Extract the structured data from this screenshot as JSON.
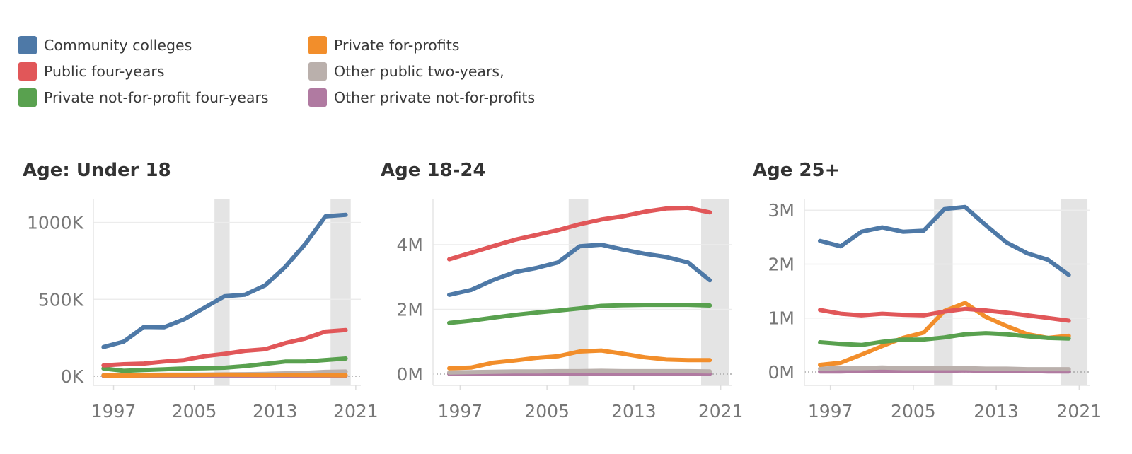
{
  "legend": [
    {
      "label": "Community colleges",
      "color": "#4e79a7"
    },
    {
      "label": "Public four-years",
      "color": "#e15759"
    },
    {
      "label": "Private not-for-profit four-years",
      "color": "#59a14f"
    },
    {
      "label": "Private for-profits",
      "color": "#f28e2b"
    },
    {
      "label": "Other public two-years,",
      "color": "#bab0ac"
    },
    {
      "label": "Other private not-for-profits",
      "color": "#b07aa1"
    }
  ],
  "chart_data": [
    {
      "type": "line",
      "title": "Age: Under 18",
      "x": [
        1996,
        1998,
        2000,
        2002,
        2004,
        2006,
        2008,
        2010,
        2012,
        2014,
        2016,
        2018,
        2020
      ],
      "xticks": [
        "1997",
        "2005",
        "2013",
        "2021"
      ],
      "xtick_values": [
        1997,
        2005,
        2013,
        2021
      ],
      "xlim": [
        1995,
        2021.5
      ],
      "ylim": [
        -60,
        1150
      ],
      "yticks": [
        0,
        500,
        1000
      ],
      "ytick_labels": [
        "0K",
        "500K",
        "1000K"
      ],
      "shaded_ranges": [
        [
          2007,
          2008.5
        ],
        [
          2018.5,
          2020.5
        ]
      ],
      "series": [
        {
          "name": "Community colleges",
          "values": [
            190,
            225,
            320,
            318,
            370,
            445,
            520,
            530,
            590,
            710,
            860,
            1040,
            1050
          ]
        },
        {
          "name": "Public four-years",
          "values": [
            70,
            78,
            82,
            95,
            105,
            130,
            145,
            165,
            175,
            215,
            245,
            290,
            300
          ]
        },
        {
          "name": "Private not-for-profit four-years",
          "values": [
            50,
            35,
            40,
            45,
            50,
            52,
            55,
            65,
            80,
            95,
            95,
            105,
            115
          ]
        },
        {
          "name": "Private for-profits",
          "values": [
            5,
            4,
            6,
            7,
            8,
            9,
            10,
            9,
            8,
            9,
            8,
            7,
            6
          ]
        },
        {
          "name": "Other public two-years,",
          "values": [
            8,
            8,
            9,
            10,
            10,
            11,
            12,
            13,
            15,
            18,
            22,
            28,
            30
          ]
        },
        {
          "name": "Other private not-for-profits",
          "values": [
            2,
            2,
            2,
            2,
            2,
            2,
            2,
            2,
            2,
            2,
            2,
            2,
            2
          ]
        }
      ]
    },
    {
      "type": "line",
      "title": "Age 18-24",
      "x": [
        1996,
        1998,
        2000,
        2002,
        2004,
        2006,
        2008,
        2010,
        2012,
        2014,
        2016,
        2018,
        2020
      ],
      "xticks": [
        "1997",
        "2005",
        "2013",
        "2021"
      ],
      "xtick_values": [
        1997,
        2005,
        2013,
        2021
      ],
      "xlim": [
        1994.5,
        2022
      ],
      "ylim": [
        -0.35,
        5.4
      ],
      "yticks": [
        0,
        2,
        4
      ],
      "ytick_labels": [
        "0M",
        "2M",
        "4M"
      ],
      "shaded_ranges": [
        [
          2007,
          2008.8
        ],
        [
          2019.2,
          2021.8
        ]
      ],
      "series": [
        {
          "name": "Community colleges",
          "values": [
            2.45,
            2.6,
            2.9,
            3.15,
            3.28,
            3.45,
            3.95,
            4.0,
            3.85,
            3.72,
            3.62,
            3.45,
            2.9
          ]
        },
        {
          "name": "Public four-years",
          "values": [
            3.55,
            3.75,
            3.95,
            4.15,
            4.3,
            4.45,
            4.63,
            4.78,
            4.88,
            5.02,
            5.12,
            5.14,
            5.0
          ]
        },
        {
          "name": "Private not-for-profit four-years",
          "values": [
            1.58,
            1.65,
            1.74,
            1.83,
            1.9,
            1.96,
            2.03,
            2.11,
            2.13,
            2.14,
            2.14,
            2.14,
            2.12
          ]
        },
        {
          "name": "Private for-profits",
          "values": [
            0.18,
            0.2,
            0.35,
            0.42,
            0.5,
            0.55,
            0.7,
            0.73,
            0.63,
            0.52,
            0.45,
            0.43,
            0.43
          ]
        },
        {
          "name": "Other public two-years,",
          "values": [
            0.05,
            0.06,
            0.07,
            0.08,
            0.08,
            0.09,
            0.09,
            0.1,
            0.09,
            0.09,
            0.09,
            0.09,
            0.08
          ]
        },
        {
          "name": "Other private not-for-profits",
          "values": [
            0.01,
            0.01,
            0.01,
            0.01,
            0.01,
            0.01,
            0.01,
            0.01,
            0.01,
            0.01,
            0.01,
            0.01,
            0.01
          ]
        }
      ]
    },
    {
      "type": "line",
      "title": "Age 25+",
      "x": [
        1996,
        1998,
        2000,
        2002,
        2004,
        2006,
        2008,
        2010,
        2012,
        2014,
        2016,
        2018,
        2020
      ],
      "xticks": [
        "1997",
        "2005",
        "2013",
        "2021"
      ],
      "xtick_values": [
        1997,
        2005,
        2013,
        2021
      ],
      "xlim": [
        1994.5,
        2022
      ],
      "ylim": [
        -0.25,
        3.2
      ],
      "yticks": [
        0,
        1,
        2,
        3
      ],
      "ytick_labels": [
        "0M",
        "1M",
        "2M",
        "3M"
      ],
      "shaded_ranges": [
        [
          2007,
          2008.8
        ],
        [
          2019.2,
          2021.8
        ]
      ],
      "series": [
        {
          "name": "Community colleges",
          "values": [
            2.43,
            2.33,
            2.6,
            2.68,
            2.6,
            2.62,
            3.02,
            3.06,
            2.72,
            2.4,
            2.2,
            2.08,
            1.8
          ]
        },
        {
          "name": "Public four-years",
          "values": [
            1.15,
            1.08,
            1.05,
            1.08,
            1.06,
            1.05,
            1.12,
            1.17,
            1.14,
            1.1,
            1.05,
            1.0,
            0.95
          ]
        },
        {
          "name": "Private not-for-profit four-years",
          "values": [
            0.55,
            0.52,
            0.5,
            0.56,
            0.6,
            0.6,
            0.64,
            0.7,
            0.72,
            0.7,
            0.66,
            0.63,
            0.62
          ]
        },
        {
          "name": "Private for-profits",
          "values": [
            0.13,
            0.17,
            0.32,
            0.48,
            0.63,
            0.73,
            1.13,
            1.28,
            1.02,
            0.85,
            0.7,
            0.63,
            0.67
          ]
        },
        {
          "name": "Other public two-years,",
          "values": [
            0.06,
            0.07,
            0.07,
            0.08,
            0.07,
            0.07,
            0.07,
            0.07,
            0.06,
            0.06,
            0.05,
            0.05,
            0.05
          ]
        },
        {
          "name": "Other private not-for-profits",
          "values": [
            0.01,
            0.01,
            0.02,
            0.02,
            0.02,
            0.02,
            0.02,
            0.03,
            0.02,
            0.02,
            0.02,
            0.01,
            0.01
          ]
        }
      ]
    }
  ]
}
